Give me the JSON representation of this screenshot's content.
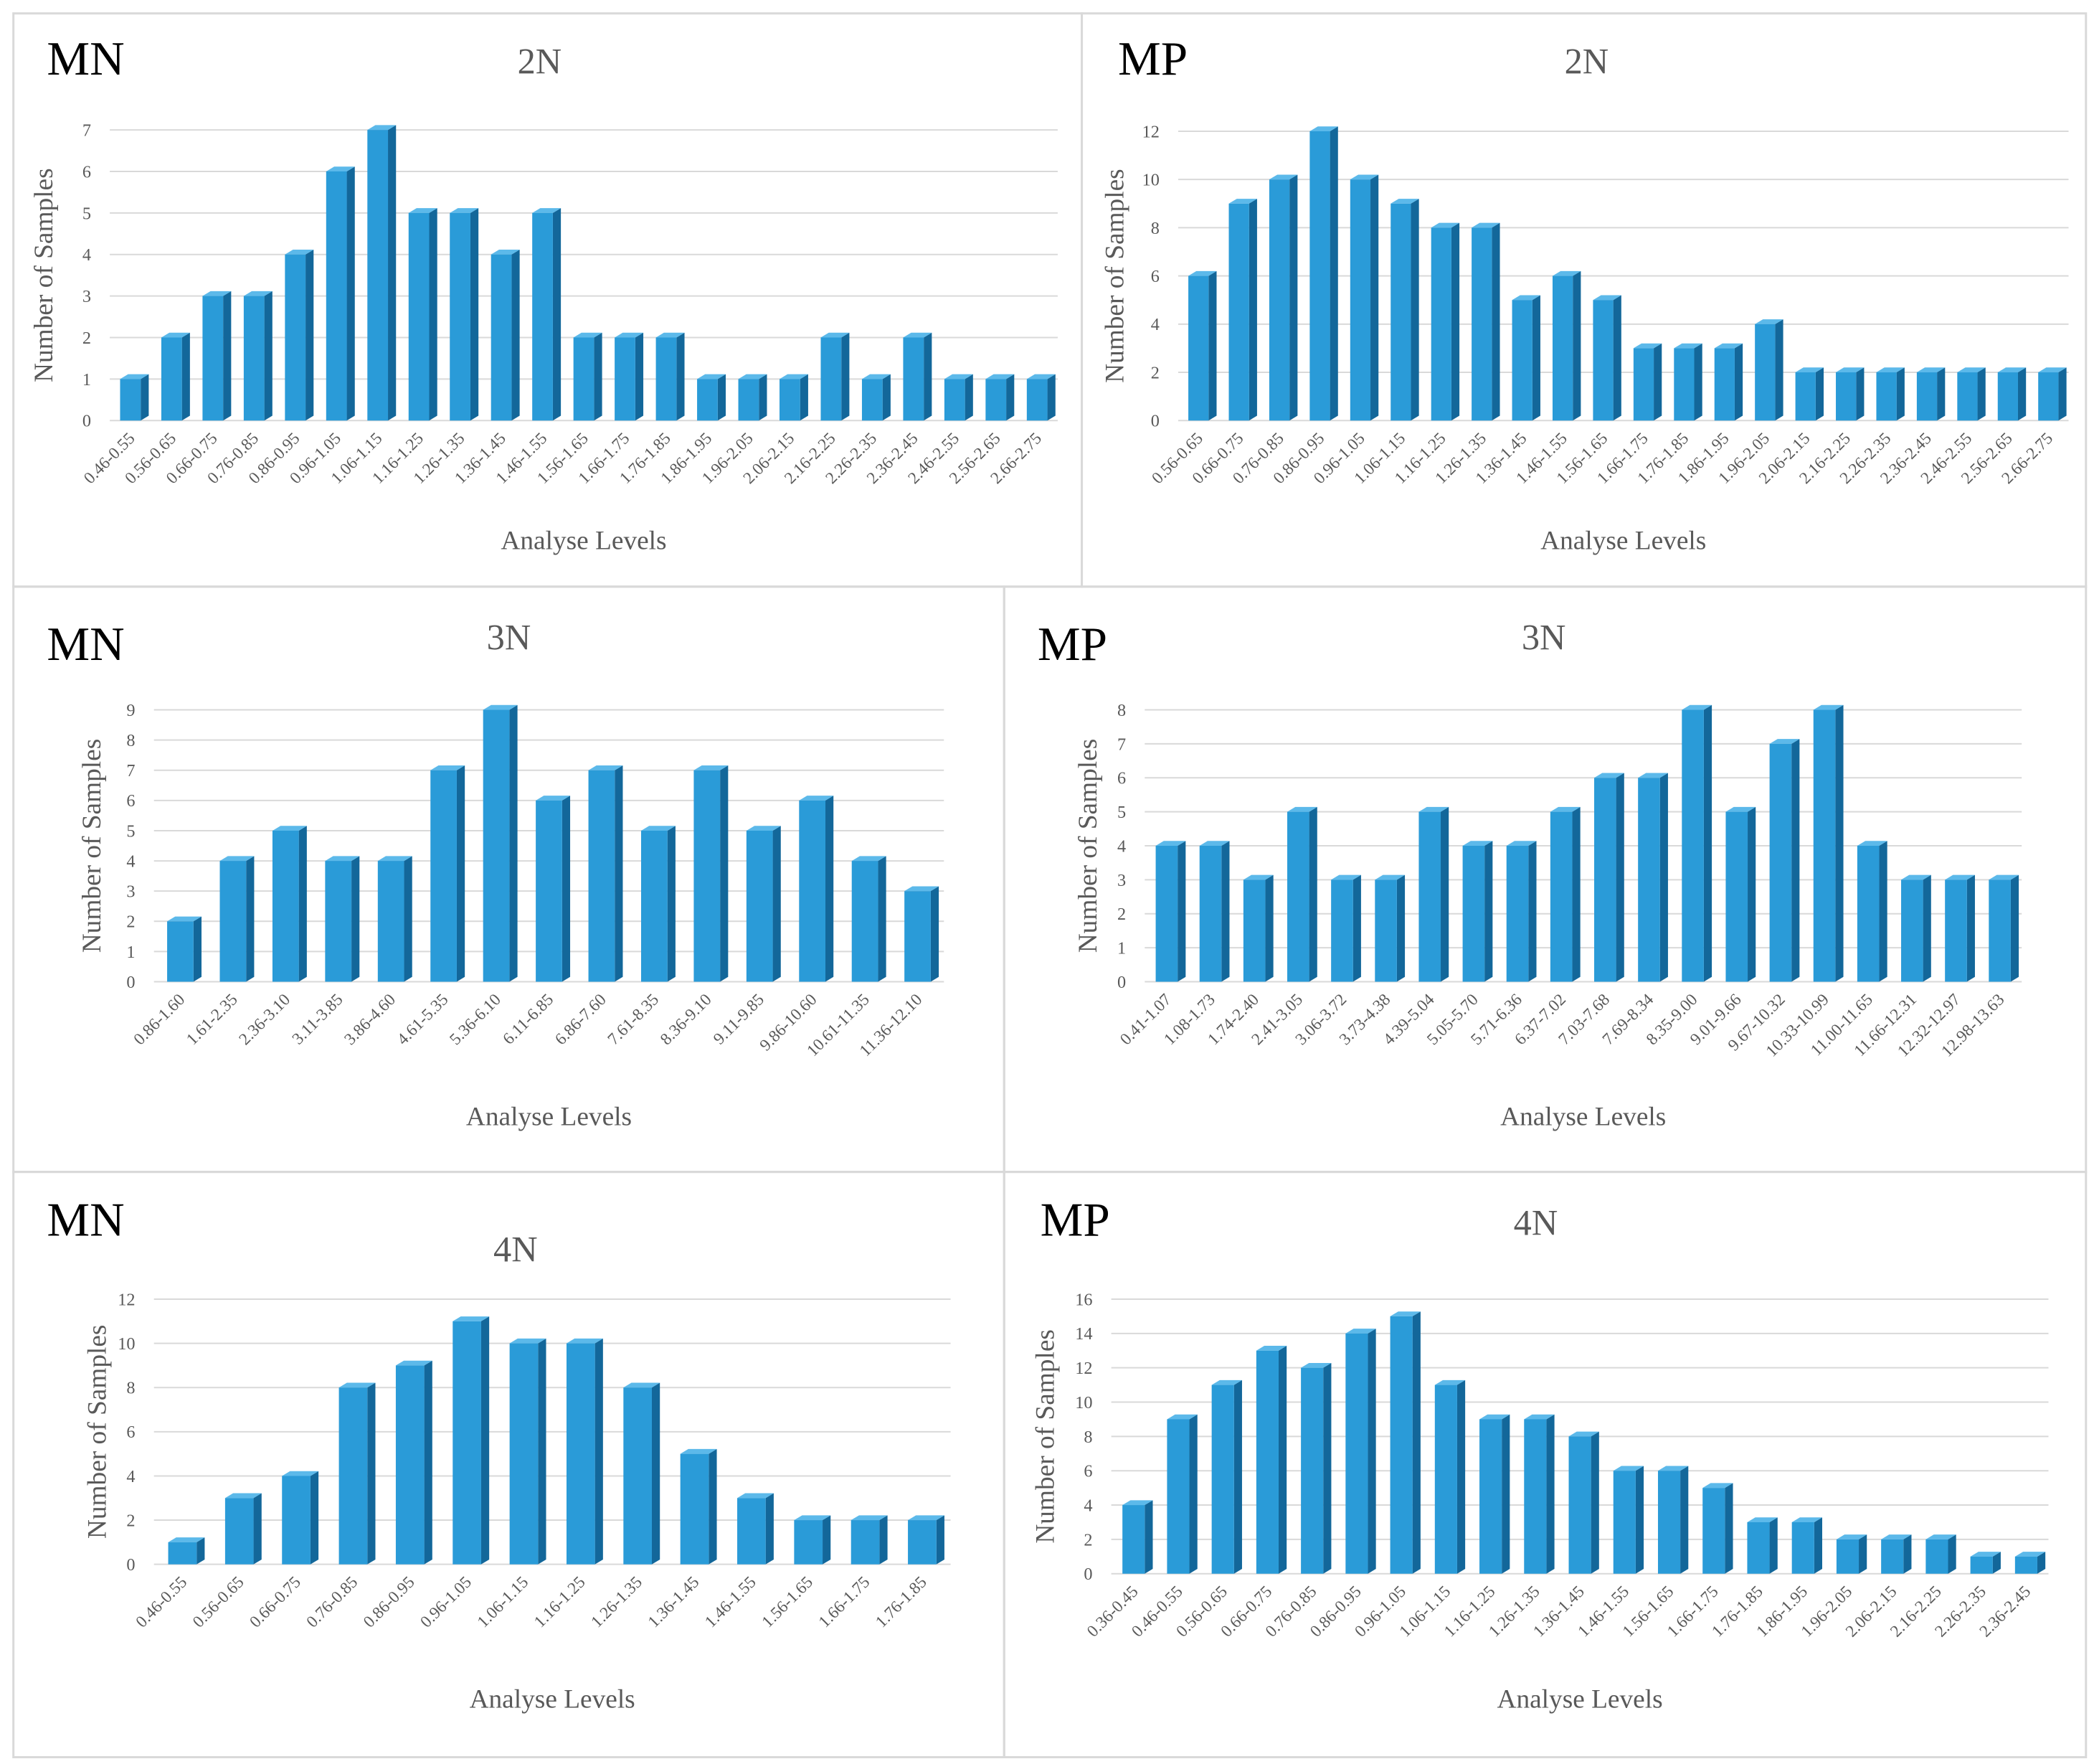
{
  "chart_data": [
    {
      "type": "bar",
      "label": "MN",
      "title": "2N",
      "xlabel": "Analyse Levels",
      "ylabel": "Number of Samples",
      "categories": [
        "0.46-0.55",
        "0.56-0.65",
        "0.66-0.75",
        "0.76-0.85",
        "0.86-0.95",
        "0.96-1.05",
        "1.06-1.15",
        "1.16-1.25",
        "1.26-1.35",
        "1.36-1.45",
        "1.46-1.55",
        "1.56-1.65",
        "1.66-1.75",
        "1.76-1.85",
        "1.86-1.95",
        "1.96-2.05",
        "2.06-2.15",
        "2.16-2.25",
        "2.26-2.35",
        "2.36-2.45",
        "2.46-2.55",
        "2.56-2.65",
        "2.66-2.75"
      ],
      "values": [
        1,
        2,
        3,
        3,
        4,
        6,
        7,
        5,
        5,
        4,
        5,
        2,
        2,
        2,
        1,
        1,
        1,
        2,
        1,
        2,
        1,
        1,
        1
      ],
      "color": "#2a9bd8",
      "ylim": [
        0,
        7
      ],
      "yticks": [
        0,
        1,
        2,
        3,
        4,
        5,
        6,
        7
      ],
      "grid": true
    },
    {
      "type": "bar",
      "label": "MP",
      "title": "2N",
      "xlabel": "Analyse Levels",
      "ylabel": "Number of Samples",
      "categories": [
        "0.56-0.65",
        "0.66-0.75",
        "0.76-0.85",
        "0.86-0.95",
        "0.96-1.05",
        "1.06-1.15",
        "1.16-1.25",
        "1.26-1.35",
        "1.36-1.45",
        "1.46-1.55",
        "1.56-1.65",
        "1.66-1.75",
        "1.76-1.85",
        "1.86-1.95",
        "1.96-2.05",
        "2.06-2.15",
        "2.16-2.25",
        "2.26-2.35",
        "2.36-2.45",
        "2.46-2.55",
        "2.56-2.65",
        "2.66-2.75"
      ],
      "values": [
        6,
        9,
        10,
        12,
        10,
        9,
        8,
        8,
        5,
        6,
        5,
        3,
        3,
        3,
        4,
        2,
        2,
        2,
        2,
        2,
        2,
        2
      ],
      "color": "#2a9bd8",
      "ylim": [
        0,
        12
      ],
      "yticks": [
        0,
        2,
        4,
        6,
        8,
        10,
        12
      ],
      "grid": true
    },
    {
      "type": "bar",
      "label": "MN",
      "title": "3N",
      "xlabel": "Analyse Levels",
      "ylabel": "Number of Samples",
      "categories": [
        "0.86-1.60",
        "1.61-2.35",
        "2.36-3.10",
        "3.11-3.85",
        "3.86-4.60",
        "4.61-5.35",
        "5.36-6.10",
        "6.11-6.85",
        "6.86-7.60",
        "7.61-8.35",
        "8.36-9.10",
        "9.11-9.85",
        "9.86-10.60",
        "10.61-11.35",
        "11.36-12.10"
      ],
      "values": [
        2,
        4,
        5,
        4,
        4,
        7,
        9,
        6,
        7,
        5,
        7,
        5,
        6,
        4,
        3
      ],
      "color": "#2a9bd8",
      "ylim": [
        0,
        9
      ],
      "yticks": [
        0,
        1,
        2,
        3,
        4,
        5,
        6,
        7,
        8,
        9
      ],
      "grid": true
    },
    {
      "type": "bar",
      "label": "MP",
      "title": "3N",
      "xlabel": "Analyse Levels",
      "ylabel": "Number of Samples",
      "categories": [
        "0.41-1.07",
        "1.08-1.73",
        "1.74-2.40",
        "2.41-3.05",
        "3.06-3.72",
        "3.73-4.38",
        "4.39-5.04",
        "5.05-5.70",
        "5.71-6.36",
        "6.37-7.02",
        "7.03-7.68",
        "7.69-8.34",
        "8.35-9.00",
        "9.01-9.66",
        "9.67-10.32",
        "10.33-10.99",
        "11.00-11.65",
        "11.66-12.31",
        "12.32-12.97",
        "12.98-13.63"
      ],
      "values": [
        4,
        4,
        3,
        5,
        3,
        3,
        5,
        4,
        4,
        5,
        6,
        6,
        8,
        5,
        7,
        8,
        4,
        3,
        3,
        3
      ],
      "color": "#2a9bd8",
      "ylim": [
        0,
        8
      ],
      "yticks": [
        0,
        1,
        2,
        3,
        4,
        5,
        6,
        7,
        8
      ],
      "grid": true
    },
    {
      "type": "bar",
      "label": "MN",
      "title": "4N",
      "xlabel": "Analyse Levels",
      "ylabel": "Number of Samples",
      "categories": [
        "0.46-0.55",
        "0.56-0.65",
        "0.66-0.75",
        "0.76-0.85",
        "0.86-0.95",
        "0.96-1.05",
        "1.06-1.15",
        "1.16-1.25",
        "1.26-1.35",
        "1.36-1.45",
        "1.46-1.55",
        "1.56-1.65",
        "1.66-1.75",
        "1.76-1.85"
      ],
      "values": [
        1,
        3,
        4,
        8,
        9,
        11,
        10,
        10,
        8,
        5,
        3,
        2,
        2,
        2
      ],
      "color": "#2a9bd8",
      "ylim": [
        0,
        12
      ],
      "yticks": [
        0,
        2,
        4,
        6,
        8,
        10,
        12
      ],
      "grid": true
    },
    {
      "type": "bar",
      "label": "MP",
      "title": "4N",
      "xlabel": "Analyse Levels",
      "ylabel": "Number of Samples",
      "categories": [
        "0.36-0.45",
        "0.46-0.55",
        "0.56-0.65",
        "0.66-0.75",
        "0.76-0.85",
        "0.86-0.95",
        "0.96-1.05",
        "1.06-1.15",
        "1.16-1.25",
        "1.26-1.35",
        "1.36-1.45",
        "1.46-1.55",
        "1.56-1.65",
        "1.66-1.75",
        "1.76-1.85",
        "1.86-1.95",
        "1.96-2.05",
        "2.06-2.15",
        "2.16-2.25",
        "2.26-2.35",
        "2.36-2.45"
      ],
      "values": [
        4,
        9,
        11,
        13,
        12,
        14,
        15,
        11,
        9,
        9,
        8,
        6,
        6,
        5,
        3,
        3,
        2,
        2,
        2,
        1,
        1
      ],
      "color": "#2a9bd8",
      "ylim": [
        0,
        16
      ],
      "yticks": [
        0,
        2,
        4,
        6,
        8,
        10,
        12,
        14,
        16
      ],
      "grid": true
    }
  ]
}
